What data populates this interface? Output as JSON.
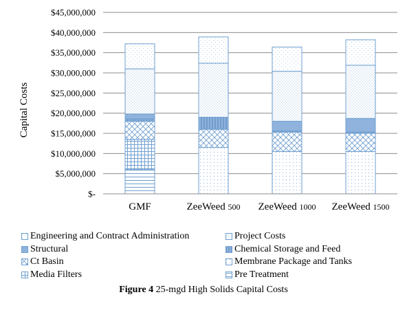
{
  "chart_data": {
    "type": "bar",
    "stacked": true,
    "ylabel": "Capital Costs",
    "ylim": [
      0,
      45000000
    ],
    "yticks": [
      "$-",
      "$5,000,000",
      "$10,000,000",
      "$15,000,000",
      "$20,000,000",
      "$25,000,000",
      "$30,000,000",
      "$35,000,000",
      "$40,000,000",
      "$45,000,000"
    ],
    "categories": [
      {
        "main": "GMF",
        "small": ""
      },
      {
        "main": "ZeeWeed ",
        "small": "500"
      },
      {
        "main": "ZeeWeed ",
        "small": "1000"
      },
      {
        "main": "ZeeWeed ",
        "small": "1500"
      }
    ],
    "grid": true,
    "legend_position": "bottom",
    "series": [
      {
        "name": "Pre Treatment",
        "pattern": "hlines",
        "values": [
          6000000,
          0,
          0,
          0
        ]
      },
      {
        "name": "Membrane Package and Tanks",
        "pattern": "dots",
        "values": [
          0,
          11500000,
          10500000,
          10500000
        ]
      },
      {
        "name": "Media Filters",
        "pattern": "grid",
        "values": [
          7500000,
          0,
          0,
          0
        ]
      },
      {
        "name": "Ct Basin",
        "pattern": "cross",
        "values": [
          4500000,
          4500000,
          4800000,
          4500000
        ]
      },
      {
        "name": "Chemical Storage and Feed",
        "pattern": "solid-stripe",
        "values": [
          600000,
          3000000,
          300000,
          300000
        ]
      },
      {
        "name": "Structural",
        "pattern": "solid",
        "values": [
          1200000,
          0,
          2400000,
          3400000
        ]
      },
      {
        "name": "Project Costs",
        "pattern": "denseDots",
        "values": [
          11200000,
          13400000,
          12400000,
          13200000
        ]
      },
      {
        "name": "Engineering and Contract Administration",
        "pattern": "sparseDots",
        "values": [
          6200000,
          6500000,
          6000000,
          6300000
        ]
      }
    ]
  },
  "legend": {
    "left": [
      "Engineering and Contract Administration",
      "Structural",
      "Ct Basin",
      "Media Filters"
    ],
    "right": [
      "Project Costs",
      "Chemical Storage and Feed",
      "Membrane Package and Tanks",
      "Pre Treatment"
    ]
  },
  "caption": {
    "label": "Figure 4",
    "text": " 25-mgd High Solids Capital Costs"
  },
  "colors": {
    "line": "#6f9fd0",
    "solid": "#8fb3dd",
    "fill": "#ffffff",
    "grid": "#8c8c8c"
  }
}
